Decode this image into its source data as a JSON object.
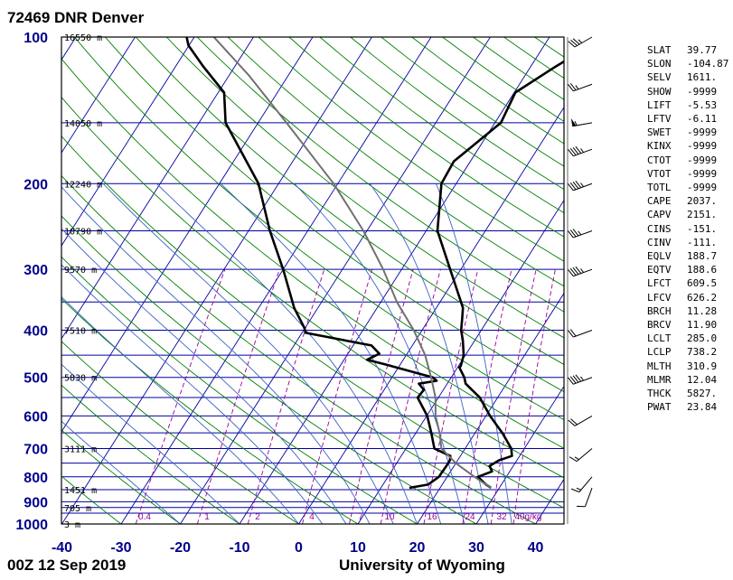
{
  "header": {
    "title": "72469 DNR Denver"
  },
  "footer": {
    "time": "00Z 12 Sep 2019",
    "source": "University of Wyoming"
  },
  "colors": {
    "axis_label": "#00008b",
    "isobar": "#0000a0",
    "isotherm": "#0000a0",
    "dry_adiabat": "#008000",
    "moist_adiabat": "#3b63c4",
    "mixing_ratio": "#990099",
    "sounding": "#000000",
    "parcel": "#707070"
  },
  "chart_data": {
    "type": "line",
    "chart_kind": "skew-T log-P",
    "xlabel": "",
    "ylabel": "",
    "xlim": [
      -40,
      45
    ],
    "ylim": [
      1000,
      100
    ],
    "y_scale": "log",
    "pressure_ticks": [
      100,
      200,
      300,
      400,
      500,
      600,
      700,
      800,
      900,
      1000
    ],
    "temperature_ticks": [
      -40,
      -30,
      -20,
      -10,
      0,
      10,
      20,
      30,
      40
    ],
    "height_labels": [
      {
        "p": 100,
        "label": "16550 m"
      },
      {
        "p": 150,
        "label": "14050 m"
      },
      {
        "p": 200,
        "label": "12240 m"
      },
      {
        "p": 250,
        "label": "10790 m"
      },
      {
        "p": 300,
        "label": "9570 m"
      },
      {
        "p": 400,
        "label": "7510 m"
      },
      {
        "p": 500,
        "label": "5830 m"
      },
      {
        "p": 700,
        "label": "3111 m"
      },
      {
        "p": 850,
        "label": "1451 m"
      },
      {
        "p": 925,
        "label": "705 m"
      },
      {
        "p": 1000,
        "label": "3 m"
      }
    ],
    "mixing_ratio_labels": [
      "0.4",
      "1",
      "2",
      "4",
      "7",
      "10",
      "16",
      "24",
      "32",
      "40",
      "g/kg"
    ],
    "series": [
      {
        "values": [
          [
            843,
            28.6
          ],
          [
            830,
            27.4
          ],
          [
            800,
            25.2
          ],
          [
            780,
            27
          ],
          [
            760,
            26
          ],
          [
            740,
            27
          ],
          [
            725,
            28.7
          ],
          [
            700,
            27.8
          ],
          [
            650,
            24.6
          ],
          [
            600,
            20.7
          ],
          [
            550,
            17
          ],
          [
            515,
            13.1
          ],
          [
            500,
            12.2
          ],
          [
            477,
            10.3
          ],
          [
            474,
            10.4
          ],
          [
            450,
            9.7
          ],
          [
            420,
            8
          ],
          [
            400,
            6.6
          ],
          [
            380,
            5.6
          ],
          [
            360,
            4.5
          ],
          [
            330,
            1.5
          ],
          [
            300,
            -1.8
          ],
          [
            250,
            -8.1
          ],
          [
            200,
            -12.5
          ],
          [
            180,
            -12.8
          ],
          [
            150,
            -9
          ],
          [
            130,
            -9.8
          ],
          [
            115,
            -5.8
          ],
          [
            106,
            -2.8
          ],
          [
            100,
            -2.8
          ]
        ]
      },
      {
        "values": [
          [
            843,
            14.8
          ],
          [
            830,
            17.6
          ],
          [
            800,
            18.6
          ],
          [
            760,
            18.7
          ],
          [
            740,
            18.7
          ],
          [
            725,
            18.3
          ],
          [
            700,
            14.8
          ],
          [
            650,
            12.6
          ],
          [
            600,
            10.1
          ],
          [
            550,
            6.5
          ],
          [
            530,
            6.7
          ],
          [
            515,
            5.2
          ],
          [
            508,
            7.9
          ],
          [
            500,
            6.9
          ],
          [
            470,
            -2.6
          ],
          [
            460,
            -6.1
          ],
          [
            447,
            -4.7
          ],
          [
            430,
            -6.9
          ],
          [
            405,
            -19.4
          ],
          [
            395,
            -20.2
          ],
          [
            360,
            -24
          ],
          [
            300,
            -30
          ],
          [
            250,
            -36.4
          ],
          [
            200,
            -43.4
          ],
          [
            150,
            -55.5
          ],
          [
            130,
            -59
          ],
          [
            115,
            -65.3
          ],
          [
            104,
            -70.1
          ],
          [
            100,
            -71.3
          ]
        ]
      },
      {
        "values": [
          [
            843,
            28.6
          ],
          [
            800,
            24.6
          ],
          [
            750,
            20
          ],
          [
            700,
            16
          ],
          [
            650,
            14
          ],
          [
            600,
            11.5
          ],
          [
            550,
            9.5
          ],
          [
            500,
            6.6
          ],
          [
            450,
            3.2
          ],
          [
            400,
            -1.4
          ],
          [
            350,
            -7.3
          ],
          [
            300,
            -13.1
          ],
          [
            250,
            -20.6
          ],
          [
            200,
            -30.7
          ],
          [
            150,
            -45.2
          ],
          [
            120,
            -56.6
          ],
          [
            100,
            -66.7
          ]
        ]
      }
    ],
    "wind_barbs": [
      {
        "p": 843,
        "dir": 200,
        "kt": 10
      },
      {
        "p": 800,
        "dir": 220,
        "kt": 15
      },
      {
        "p": 700,
        "dir": 230,
        "kt": 15
      },
      {
        "p": 600,
        "dir": 240,
        "kt": 20
      },
      {
        "p": 500,
        "dir": 250,
        "kt": 45
      },
      {
        "p": 400,
        "dir": 250,
        "kt": 20
      },
      {
        "p": 300,
        "dir": 250,
        "kt": 45
      },
      {
        "p": 250,
        "dir": 250,
        "kt": 35
      },
      {
        "p": 200,
        "dir": 250,
        "kt": 45
      },
      {
        "p": 170,
        "dir": 250,
        "kt": 45
      },
      {
        "p": 150,
        "dir": 260,
        "kt": 55
      },
      {
        "p": 125,
        "dir": 250,
        "kt": 25
      },
      {
        "p": 100,
        "dir": 240,
        "kt": 35
      }
    ]
  },
  "indices": [
    {
      "k": "SLAT",
      "v": "39.77"
    },
    {
      "k": "SLON",
      "v": "-104.87"
    },
    {
      "k": "SELV",
      "v": "1611."
    },
    {
      "k": "SHOW",
      "v": "-9999"
    },
    {
      "k": "LIFT",
      "v": "-5.53"
    },
    {
      "k": "LFTV",
      "v": "-6.11"
    },
    {
      "k": "SWET",
      "v": "-9999"
    },
    {
      "k": "KINX",
      "v": "-9999"
    },
    {
      "k": "CTOT",
      "v": "-9999"
    },
    {
      "k": "VTOT",
      "v": "-9999"
    },
    {
      "k": "TOTL",
      "v": "-9999"
    },
    {
      "k": "CAPE",
      "v": "2037."
    },
    {
      "k": "CAPV",
      "v": "2151."
    },
    {
      "k": "CINS",
      "v": "-151."
    },
    {
      "k": "CINV",
      "v": "-111."
    },
    {
      "k": "EQLV",
      "v": "188.7"
    },
    {
      "k": "EQTV",
      "v": "188.6"
    },
    {
      "k": "LFCT",
      "v": "609.5"
    },
    {
      "k": "LFCV",
      "v": "626.2"
    },
    {
      "k": "BRCH",
      "v": "11.28"
    },
    {
      "k": "BRCV",
      "v": "11.90"
    },
    {
      "k": "LCLT",
      "v": "285.0"
    },
    {
      "k": "LCLP",
      "v": "738.2"
    },
    {
      "k": "MLTH",
      "v": "310.9"
    },
    {
      "k": "MLMR",
      "v": "12.04"
    },
    {
      "k": "THCK",
      "v": "5827."
    },
    {
      "k": "PWAT",
      "v": "23.84"
    }
  ]
}
